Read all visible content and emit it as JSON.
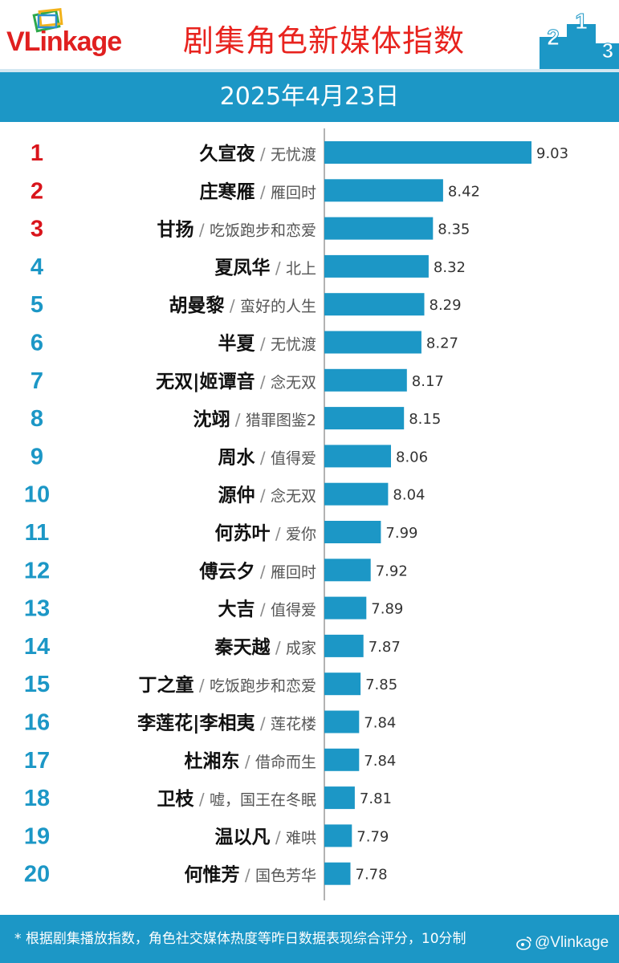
{
  "brand": {
    "logo_text_v": "VL",
    "logo_text_rest": "inkage"
  },
  "title": "剧集角色新媒体指数",
  "date": "2025年4月23日",
  "footnote": "* 根据剧集播放指数，角色社交媒体热度等昨日数据表现综合评分，10分制",
  "watermark": "@Vlinkage",
  "colors": {
    "bar": "#1c97c6",
    "rank_top": "#d9141b",
    "rank_rest": "#1c97c6",
    "title": "#e8231e"
  },
  "chart_data": {
    "type": "bar",
    "orientation": "horizontal",
    "xlim": [
      7.6,
      9.2
    ],
    "categories": [
      {
        "rank": "1",
        "role": "久宣夜",
        "drama": "无忧渡"
      },
      {
        "rank": "2",
        "role": "庄寒雁",
        "drama": "雁回时"
      },
      {
        "rank": "3",
        "role": "甘扬",
        "drama": "吃饭跑步和恋爱"
      },
      {
        "rank": "4",
        "role": "夏凤华",
        "drama": "北上"
      },
      {
        "rank": "5",
        "role": "胡曼黎",
        "drama": "蛮好的人生"
      },
      {
        "rank": "6",
        "role": "半夏",
        "drama": "无忧渡"
      },
      {
        "rank": "7",
        "role": "无双|姬谭音",
        "drama": "念无双"
      },
      {
        "rank": "8",
        "role": "沈翊",
        "drama": "猎罪图鉴2"
      },
      {
        "rank": "9",
        "role": "周水",
        "drama": "值得爱"
      },
      {
        "rank": "10",
        "role": "源仲",
        "drama": "念无双"
      },
      {
        "rank": "11",
        "role": "何苏叶",
        "drama": "爱你"
      },
      {
        "rank": "12",
        "role": "傅云夕",
        "drama": "雁回时"
      },
      {
        "rank": "13",
        "role": "大吉",
        "drama": "值得爱"
      },
      {
        "rank": "14",
        "role": "秦天越",
        "drama": "成家"
      },
      {
        "rank": "15",
        "role": "丁之童",
        "drama": "吃饭跑步和恋爱"
      },
      {
        "rank": "16",
        "role": "李莲花|李相夷",
        "drama": "莲花楼"
      },
      {
        "rank": "17",
        "role": "杜湘东",
        "drama": "借命而生"
      },
      {
        "rank": "18",
        "role": "卫枝",
        "drama": "嘘，国王在冬眠"
      },
      {
        "rank": "19",
        "role": "温以凡",
        "drama": "难哄"
      },
      {
        "rank": "20",
        "role": "何惟芳",
        "drama": "国色芳华"
      }
    ],
    "values": [
      9.03,
      8.42,
      8.35,
      8.32,
      8.29,
      8.27,
      8.17,
      8.15,
      8.06,
      8.04,
      7.99,
      7.92,
      7.89,
      7.87,
      7.85,
      7.84,
      7.84,
      7.81,
      7.79,
      7.78
    ],
    "value_labels": [
      "9.03",
      "8.42",
      "8.35",
      "8.32",
      "8.29",
      "8.27",
      "8.17",
      "8.15",
      "8.06",
      "8.04",
      "7.99",
      "7.92",
      "7.89",
      "7.87",
      "7.85",
      "7.84",
      "7.84",
      "7.81",
      "7.79",
      "7.78"
    ],
    "grid": false
  }
}
